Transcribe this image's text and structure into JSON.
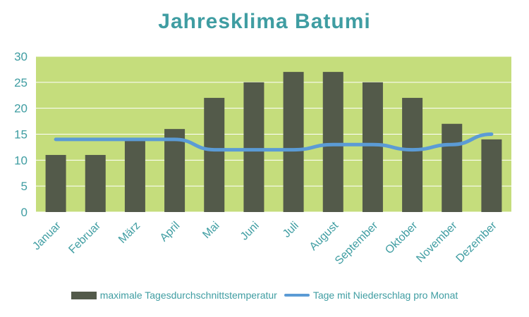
{
  "chart_data": {
    "type": "bar+line",
    "title": "Jahresklima  Batumi",
    "categories": [
      "Januar",
      "Februar",
      "März",
      "April",
      "Mai",
      "Juni",
      "Juli",
      "August",
      "September",
      "Oktober",
      "November",
      "Dezember"
    ],
    "series": [
      {
        "name": "maximale Tagesdurchschnittstemperatur",
        "type": "bar",
        "values": [
          11,
          11,
          14,
          16,
          22,
          25,
          27,
          27,
          25,
          22,
          17,
          14
        ]
      },
      {
        "name": "Tage mit Niederschlag pro Monat",
        "type": "line",
        "values": [
          14,
          14,
          14,
          14,
          12,
          12,
          12,
          13,
          13,
          12,
          13,
          15
        ]
      }
    ],
    "ylim": [
      0,
      30
    ],
    "yticks": [
      "0",
      "5",
      "10",
      "15",
      "20",
      "25",
      "30"
    ],
    "grid": true,
    "legend_position": "bottom",
    "colors": {
      "plot_background": "#c5dd7c",
      "bar": "#535a4a",
      "line": "#5b9bd5",
      "text": "#3f9da2",
      "grid": "#ffffff"
    }
  }
}
